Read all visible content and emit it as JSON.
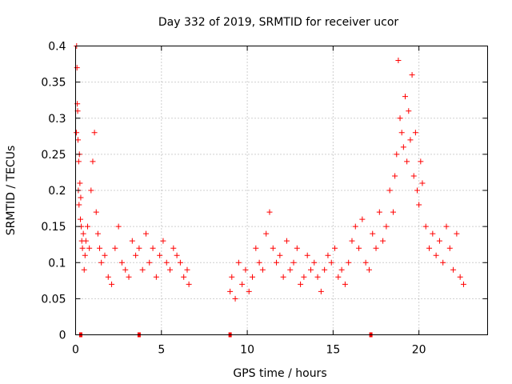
{
  "chart_data": {
    "type": "scatter",
    "title": "Day 332 of 2019, SRMTID for receiver ucor",
    "xlabel": "GPS time / hours",
    "ylabel": "SRMTID / TECUs",
    "xlim": [
      0,
      24
    ],
    "ylim": [
      0,
      0.4
    ],
    "grid": true,
    "marker": "+",
    "series_color": "#ff0000",
    "xticks": [
      0,
      5,
      10,
      15,
      20
    ],
    "xtick_labels": [
      "0",
      "5",
      "10",
      "15",
      "20"
    ],
    "yticks": [
      0,
      0.05,
      0.1,
      0.15,
      0.2,
      0.25,
      0.3,
      0.35,
      0.4
    ],
    "ytick_labels": [
      "0",
      "0.05",
      "0.1",
      "0.15",
      "0.2",
      "0.25",
      "0.3",
      "0.35",
      "0.4"
    ],
    "series": [
      {
        "name": "SRMTID",
        "x": [
          0.05,
          0.06,
          0.08,
          0.1,
          0.12,
          0.14,
          0.16,
          0.18,
          0.2,
          0.22,
          0.25,
          0.28,
          0.3,
          0.33,
          0.36,
          0.4,
          0.45,
          0.5,
          0.55,
          0.6,
          0.7,
          0.8,
          0.9,
          1.0,
          1.1,
          1.2,
          1.3,
          1.4,
          1.5,
          1.7,
          1.9,
          2.1,
          2.3,
          2.5,
          2.7,
          2.9,
          3.1,
          3.3,
          3.5,
          3.7,
          3.9,
          4.1,
          4.3,
          4.5,
          4.7,
          4.9,
          5.1,
          5.3,
          5.5,
          5.7,
          5.9,
          6.1,
          6.3,
          6.5,
          6.6,
          9.0,
          9.1,
          9.3,
          9.5,
          9.7,
          9.9,
          10.1,
          10.3,
          10.5,
          10.7,
          10.9,
          11.1,
          11.3,
          11.5,
          11.7,
          11.9,
          12.1,
          12.3,
          12.5,
          12.7,
          12.9,
          13.1,
          13.3,
          13.5,
          13.7,
          13.9,
          14.1,
          14.3,
          14.5,
          14.7,
          14.9,
          15.1,
          15.3,
          15.5,
          15.7,
          15.9,
          16.1,
          16.3,
          16.5,
          16.7,
          16.9,
          17.1,
          17.3,
          17.5,
          17.7,
          17.9,
          18.1,
          18.3,
          18.5,
          18.6,
          18.7,
          18.8,
          18.9,
          19.0,
          19.1,
          19.2,
          19.3,
          19.4,
          19.5,
          19.6,
          19.7,
          19.8,
          19.9,
          20.0,
          20.1,
          20.2,
          20.4,
          20.6,
          20.8,
          21.0,
          21.2,
          21.4,
          21.6,
          21.8,
          22.0,
          22.2,
          22.4,
          22.6
        ],
        "y": [
          0.28,
          0.4,
          0.37,
          0.32,
          0.31,
          0.27,
          0.2,
          0.24,
          0.18,
          0.25,
          0.21,
          0.16,
          0.19,
          0.15,
          0.13,
          0.12,
          0.14,
          0.09,
          0.11,
          0.13,
          0.15,
          0.12,
          0.2,
          0.24,
          0.28,
          0.17,
          0.14,
          0.12,
          0.1,
          0.11,
          0.08,
          0.07,
          0.12,
          0.15,
          0.1,
          0.09,
          0.08,
          0.13,
          0.11,
          0.12,
          0.09,
          0.14,
          0.1,
          0.12,
          0.08,
          0.11,
          0.13,
          0.1,
          0.09,
          0.12,
          0.11,
          0.1,
          0.08,
          0.09,
          0.07,
          0.06,
          0.08,
          0.05,
          0.1,
          0.07,
          0.09,
          0.06,
          0.08,
          0.12,
          0.1,
          0.09,
          0.14,
          0.17,
          0.12,
          0.1,
          0.11,
          0.08,
          0.13,
          0.09,
          0.1,
          0.12,
          0.07,
          0.08,
          0.11,
          0.09,
          0.1,
          0.08,
          0.06,
          0.09,
          0.11,
          0.1,
          0.12,
          0.08,
          0.09,
          0.07,
          0.1,
          0.13,
          0.15,
          0.12,
          0.16,
          0.1,
          0.09,
          0.14,
          0.12,
          0.17,
          0.13,
          0.15,
          0.2,
          0.17,
          0.22,
          0.25,
          0.38,
          0.3,
          0.28,
          0.26,
          0.33,
          0.24,
          0.31,
          0.27,
          0.36,
          0.22,
          0.28,
          0.2,
          0.18,
          0.24,
          0.21,
          0.15,
          0.12,
          0.14,
          0.11,
          0.13,
          0.1,
          0.15,
          0.12,
          0.09,
          0.14,
          0.08,
          0.07
        ]
      }
    ],
    "axis_markers_x": [
      0.3,
      3.7,
      9.0,
      17.2
    ]
  }
}
